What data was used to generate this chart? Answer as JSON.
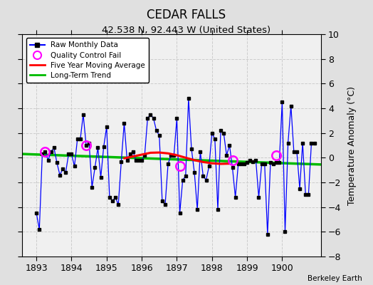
{
  "title": "CEDAR FALLS",
  "subtitle": "42.538 N, 92.443 W (United States)",
  "ylabel": "Temperature Anomaly (°C)",
  "credit": "Berkeley Earth",
  "xlim": [
    1892.6,
    1901.1
  ],
  "ylim": [
    -8,
    10
  ],
  "yticks": [
    -8,
    -6,
    -4,
    -2,
    0,
    2,
    4,
    6,
    8,
    10
  ],
  "xticks": [
    1893,
    1894,
    1895,
    1896,
    1897,
    1898,
    1899,
    1900
  ],
  "bg_color": "#f0f0f0",
  "fig_color": "#e0e0e0",
  "raw_color": "#0000ff",
  "dot_color": "#000000",
  "ma_color": "#ff0000",
  "trend_color": "#00bb00",
  "qc_color": "#ff00ff",
  "raw_x": [
    1893.0,
    1893.083,
    1893.167,
    1893.25,
    1893.333,
    1893.417,
    1893.5,
    1893.583,
    1893.667,
    1893.75,
    1893.833,
    1893.917,
    1894.0,
    1894.083,
    1894.167,
    1894.25,
    1894.333,
    1894.417,
    1894.5,
    1894.583,
    1894.667,
    1894.75,
    1894.833,
    1894.917,
    1895.0,
    1895.083,
    1895.167,
    1895.25,
    1895.333,
    1895.417,
    1895.5,
    1895.583,
    1895.667,
    1895.75,
    1895.833,
    1895.917,
    1896.0,
    1896.083,
    1896.167,
    1896.25,
    1896.333,
    1896.417,
    1896.5,
    1896.583,
    1896.667,
    1896.75,
    1896.833,
    1896.917,
    1897.0,
    1897.083,
    1897.167,
    1897.25,
    1897.333,
    1897.417,
    1897.5,
    1897.583,
    1897.667,
    1897.75,
    1897.833,
    1897.917,
    1898.0,
    1898.083,
    1898.167,
    1898.25,
    1898.333,
    1898.417,
    1898.5,
    1898.583,
    1898.667,
    1898.75,
    1898.833,
    1898.917,
    1899.0,
    1899.083,
    1899.167,
    1899.25,
    1899.333,
    1899.417,
    1899.5,
    1899.583,
    1899.667,
    1899.75,
    1899.833,
    1899.917,
    1900.0,
    1900.083,
    1900.167,
    1900.25,
    1900.333,
    1900.417,
    1900.5,
    1900.583,
    1900.667,
    1900.75,
    1900.833,
    1900.917
  ],
  "raw_y": [
    -4.5,
    -5.8,
    0.3,
    0.5,
    -0.2,
    0.5,
    0.8,
    -0.4,
    -1.4,
    -0.9,
    -1.2,
    0.3,
    0.3,
    -0.7,
    1.5,
    1.5,
    3.5,
    1.0,
    1.2,
    -2.4,
    -0.8,
    0.8,
    -1.6,
    0.9,
    2.5,
    -3.2,
    -3.5,
    -3.2,
    -3.8,
    -0.3,
    2.8,
    -0.2,
    0.3,
    0.5,
    -0.2,
    -0.2,
    -0.2,
    0.2,
    3.2,
    3.5,
    3.2,
    2.2,
    1.8,
    -3.5,
    -3.8,
    -0.5,
    0.2,
    0.2,
    3.2,
    -4.5,
    -1.8,
    -1.5,
    4.8,
    0.7,
    -1.2,
    -4.2,
    0.5,
    -1.5,
    -1.8,
    -0.7,
    2.0,
    1.5,
    -4.2,
    2.2,
    2.0,
    0.2,
    1.0,
    -0.8,
    -3.2,
    -0.5,
    -0.5,
    -0.5,
    -0.4,
    -0.2,
    -0.3,
    -0.2,
    -3.2,
    -0.5,
    -0.5,
    -6.2,
    -0.4,
    -0.5,
    -0.4,
    -0.4,
    4.5,
    -6.0,
    1.2,
    4.2,
    0.5,
    0.5,
    -2.5,
    1.2,
    -3.0,
    -3.0,
    1.2,
    1.2
  ],
  "ma_x": [
    1895.5,
    1895.75,
    1896.0,
    1896.25,
    1896.5,
    1896.75,
    1897.0,
    1897.25,
    1897.5,
    1897.75,
    1898.0,
    1898.25,
    1898.5
  ],
  "ma_y": [
    -0.05,
    0.1,
    0.25,
    0.4,
    0.42,
    0.35,
    0.2,
    0.0,
    -0.2,
    -0.35,
    -0.45,
    -0.5,
    -0.48
  ],
  "trend_x": [
    1892.6,
    1901.1
  ],
  "trend_y": [
    0.3,
    -0.55
  ],
  "qc_x": [
    1893.25,
    1894.417,
    1897.083,
    1898.583,
    1899.833
  ],
  "qc_y": [
    0.5,
    1.0,
    -0.7,
    -0.2,
    0.2
  ]
}
